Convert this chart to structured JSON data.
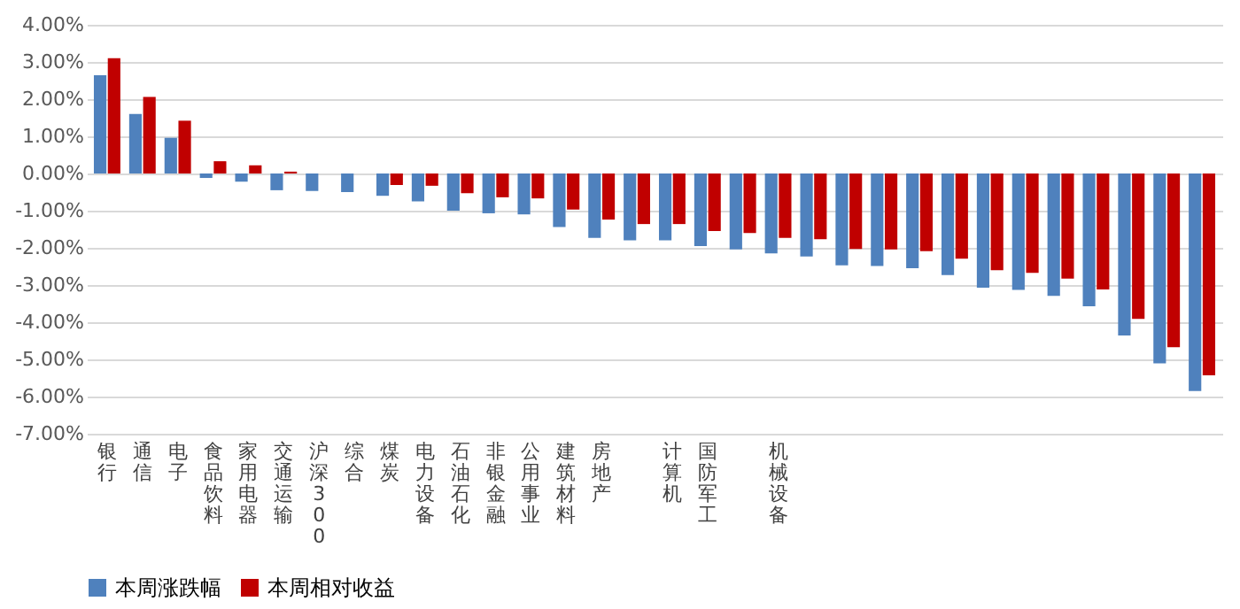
{
  "chart_data": {
    "type": "bar",
    "categories": [
      "银行",
      "通信",
      "电子",
      "食品饮料",
      "家用电器",
      "交通运输",
      "沪深300",
      "综合",
      "煤炭",
      "电力设备",
      "石油石化",
      "非银金融",
      "公用事业",
      "建筑材料",
      "房地产",
      null,
      "计算机",
      "国防军工",
      null,
      "机械设备",
      null,
      null,
      null,
      null,
      null,
      null,
      null,
      null,
      null,
      null,
      null,
      null
    ],
    "series": [
      {
        "name": "本周涨跌幅",
        "color": "#4f81bd",
        "values": [
          2.64,
          1.6,
          0.96,
          -0.12,
          -0.22,
          -0.45,
          -0.47,
          -0.5,
          -0.6,
          -0.75,
          -1.0,
          -1.07,
          -1.1,
          -1.44,
          -1.73,
          -1.8,
          -1.8,
          -1.95,
          -2.04,
          -2.15,
          -2.23,
          -2.47,
          -2.49,
          -2.55,
          -2.73,
          -3.07,
          -3.13,
          -3.29,
          -3.57,
          -4.36,
          -5.11,
          -5.85
        ]
      },
      {
        "name": "本周相对收益",
        "color": "#c00000",
        "values": [
          3.1,
          2.06,
          1.42,
          0.33,
          0.22,
          0.05,
          0,
          0,
          -0.31,
          -0.33,
          -0.53,
          -0.64,
          -0.67,
          -0.97,
          -1.24,
          -1.36,
          -1.36,
          -1.55,
          -1.6,
          -1.73,
          -1.77,
          -2.03,
          -2.04,
          -2.09,
          -2.29,
          -2.6,
          -2.67,
          -2.83,
          -3.12,
          -3.91,
          -4.67,
          -5.43
        ]
      }
    ],
    "ylim": [
      -7,
      4
    ],
    "yticks": [
      {
        "value": 4,
        "label": "4.00%"
      },
      {
        "value": 3,
        "label": "3.00%"
      },
      {
        "value": 2,
        "label": "2.00%"
      },
      {
        "value": 1,
        "label": "1.00%"
      },
      {
        "value": 0,
        "label": "0.00%"
      },
      {
        "value": -1,
        "label": "-1.00%"
      },
      {
        "value": -2,
        "label": "-2.00%"
      },
      {
        "value": -3,
        "label": "-3.00%"
      },
      {
        "value": -4,
        "label": "-4.00%"
      },
      {
        "value": -5,
        "label": "-5.00%"
      },
      {
        "value": -6,
        "label": "-6.00%"
      },
      {
        "value": -7,
        "label": "-7.00%"
      }
    ],
    "grid": "y",
    "legend": "bottom"
  }
}
